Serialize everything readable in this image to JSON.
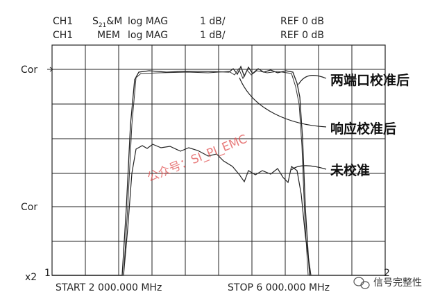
{
  "header": {
    "row1": {
      "channel": "CH1",
      "param": {
        "base": "S",
        "sub": "21",
        "rest": "&M"
      },
      "format": "log MAG",
      "scale": "1 dB/",
      "ref": "REF 0 dB"
    },
    "row2": {
      "channel": "CH1",
      "param": "MEM",
      "format": "log MAG",
      "scale": "1 dB/",
      "ref": "REF 0 dB"
    }
  },
  "left_labels": {
    "top": "Cor",
    "middle": "Cor",
    "bottom": "x2",
    "marker1": "1"
  },
  "right_labels": {
    "marker2": "2"
  },
  "footer": {
    "start": "START 2 000.000 MHz",
    "stop": "STOP 6 000.000 MHz"
  },
  "annotations": {
    "two_port": "两端口校准后",
    "response": "响应校准后",
    "uncal": "未校准"
  },
  "watermark": "公众号：SI_PI_EMC",
  "brand": "信号完整性"
}
